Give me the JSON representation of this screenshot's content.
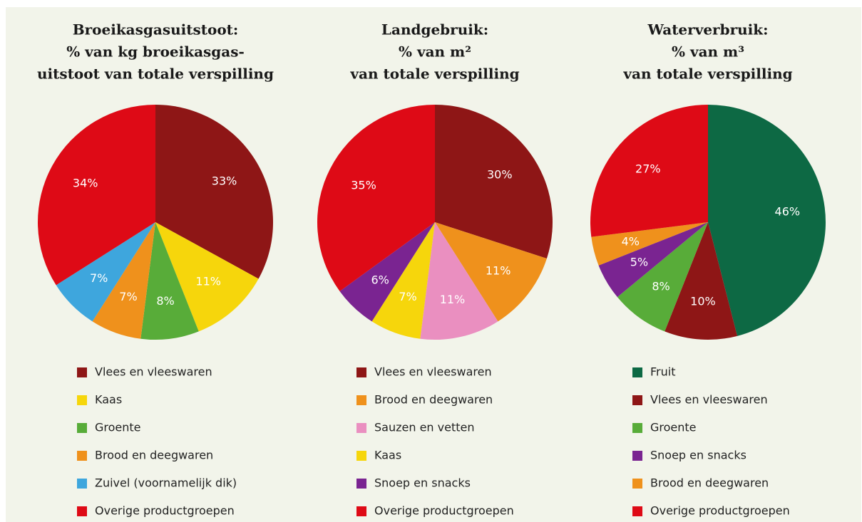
{
  "chart_data": [
    {
      "type": "pie",
      "title": [
        "Broeikasgasuitstoot:",
        "% van kg broeikasgas-",
        "uitstoot van totale verspilling"
      ],
      "categories": [
        "Vlees en vleeswaren",
        "Kaas",
        "Groente",
        "Brood en deegwaren",
        "Zuivel (voornamelijk dik)",
        "Overige productgroepen"
      ],
      "values": [
        33,
        11,
        8,
        7,
        7,
        34
      ],
      "value_labels": [
        "33%",
        "11%",
        "8%",
        "7%",
        "7%",
        "34%"
      ],
      "colors": [
        "#8e1616",
        "#f6d60c",
        "#58ac39",
        "#ef911c",
        "#3ea6dd",
        "#de0a16"
      ]
    },
    {
      "type": "pie",
      "title": [
        "Landgebruik:",
        "% van m²",
        "van totale verspilling"
      ],
      "categories": [
        "Vlees en vleeswaren",
        "Brood en deegwaren",
        "Sauzen en vetten",
        "Kaas",
        "Snoep en snacks",
        "Overige productgroepen"
      ],
      "values": [
        30,
        11,
        11,
        7,
        6,
        35
      ],
      "value_labels": [
        "30%",
        "11%",
        "11%",
        "7%",
        "6%",
        "35%"
      ],
      "colors": [
        "#8e1616",
        "#ef911c",
        "#ea8fc0",
        "#f6d60c",
        "#7a2491",
        "#de0a16"
      ]
    },
    {
      "type": "pie",
      "title": [
        "Waterverbruik:",
        "% van m³",
        "van totale verspilling"
      ],
      "categories": [
        "Fruit",
        "Vlees en vleeswaren",
        "Groente",
        "Snoep en snacks",
        "Brood en deegwaren",
        "Overige productgroepen"
      ],
      "values": [
        46,
        10,
        8,
        5,
        4,
        27
      ],
      "value_labels": [
        "46%",
        "10%",
        "8%",
        "5%",
        "4%",
        "27%"
      ],
      "colors": [
        "#0d6944",
        "#8e1616",
        "#58ac39",
        "#7a2491",
        "#ef911c",
        "#de0a16"
      ]
    }
  ]
}
